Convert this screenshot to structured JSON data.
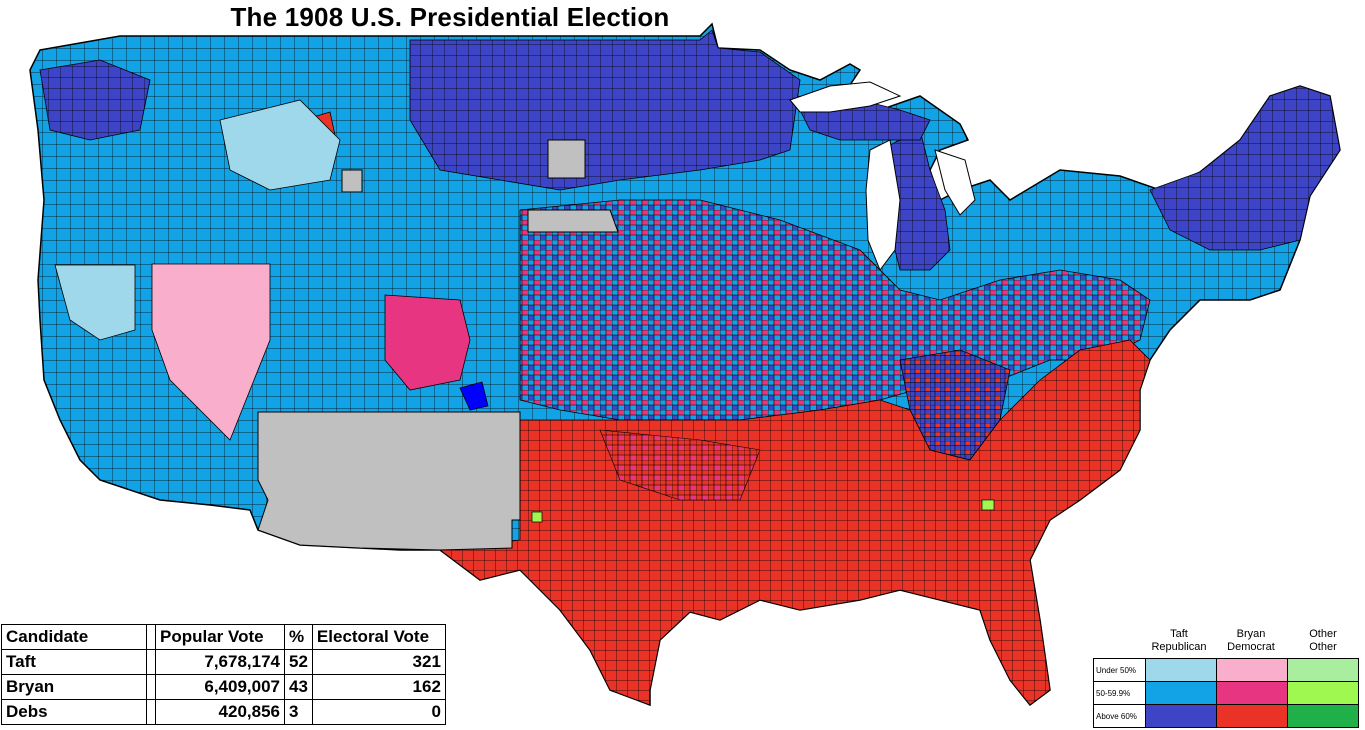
{
  "title": "The 1908 U.S. Presidential Election",
  "colors": {
    "taft_under50": "#9fd8ea",
    "taft_50_59": "#11a3e6",
    "taft_above60": "#3e44c6",
    "bryan_under50": "#f9aecb",
    "bryan_50_59": "#e83581",
    "bryan_above60": "#ea3226",
    "other_under50": "#a9ee9f",
    "other_50_59": "#9ef84f",
    "other_above60": "#1fb04a",
    "no_data": "#c0c0c0",
    "border": "#000000"
  },
  "results": {
    "headers": [
      "Candidate",
      "Popular Vote",
      "%",
      "Electoral Vote"
    ],
    "rows": [
      {
        "candidate": "Taft",
        "popular_vote": "7,678,174",
        "percent": "52",
        "electoral_vote": "321"
      },
      {
        "candidate": "Bryan",
        "popular_vote": "6,409,007",
        "percent": "43",
        "electoral_vote": "162"
      },
      {
        "candidate": "Debs",
        "popular_vote": "420,856",
        "percent": "3",
        "electoral_vote": "0"
      }
    ]
  },
  "legend": {
    "columns": [
      {
        "line1": "Taft",
        "line2": "Republican"
      },
      {
        "line1": "Bryan",
        "line2": "Democrat"
      },
      {
        "line1": "Other",
        "line2": "Other"
      }
    ],
    "rows": [
      "Under 50%",
      "50-59.9%",
      "Above 60%"
    ]
  }
}
